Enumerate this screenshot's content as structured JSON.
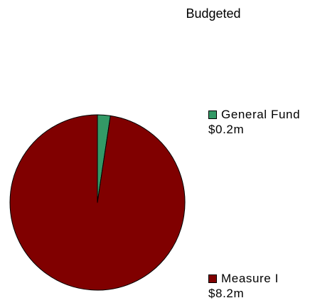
{
  "chart_data": {
    "type": "pie",
    "title": "Budgeted",
    "slices": [
      {
        "label": "General Fund",
        "value": 0.2,
        "value_label": "$0.2m",
        "color": "#339966"
      },
      {
        "label": "Measure I",
        "value": 8.2,
        "value_label": "$8.2m",
        "color": "#800000"
      }
    ],
    "legend_position": "right",
    "edge_color": "#000000"
  }
}
